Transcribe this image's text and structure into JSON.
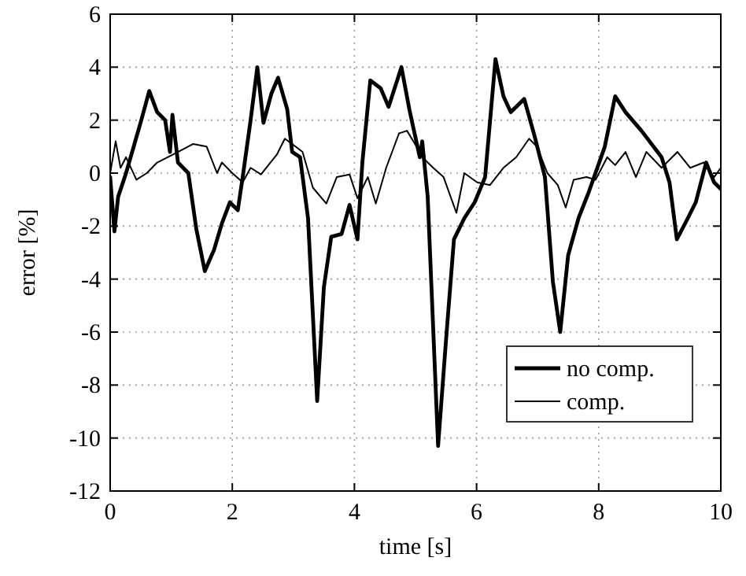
{
  "chart_data": {
    "type": "line",
    "xlabel": "time [s]",
    "ylabel": "error [%]",
    "xlim": [
      0,
      10
    ],
    "ylim": [
      -12,
      6
    ],
    "xticks": [
      0,
      2,
      4,
      6,
      8,
      10
    ],
    "yticks": [
      -12,
      -10,
      -8,
      -6,
      -4,
      -2,
      0,
      2,
      4,
      6
    ],
    "grid": true,
    "legend": "bottom right",
    "line_style": "solid",
    "series": [
      {
        "name": "no comp.",
        "color": "#000000",
        "x": [
          0,
          0.07,
          0.13,
          0.26,
          0.51,
          0.64,
          0.77,
          0.9,
          0.98,
          1.02,
          1.11,
          1.28,
          1.41,
          1.55,
          1.7,
          1.83,
          1.96,
          2.09,
          2.17,
          2.3,
          2.41,
          2.51,
          2.64,
          2.75,
          2.9,
          2.98,
          3.11,
          3.24,
          3.39,
          3.5,
          3.62,
          3.79,
          3.92,
          4.05,
          4.13,
          4.26,
          4.43,
          4.56,
          4.77,
          4.9,
          5.07,
          5.11,
          5.2,
          5.37,
          5.5,
          5.63,
          5.8,
          5.97,
          6.14,
          6.31,
          6.44,
          6.56,
          6.78,
          6.95,
          7.12,
          7.25,
          7.37,
          7.5,
          7.67,
          7.84,
          8.1,
          8.27,
          8.44,
          8.7,
          9.03,
          9.16,
          9.28,
          9.46,
          9.59,
          9.76,
          9.89,
          10
        ],
        "values": [
          -0.15,
          -2.2,
          -0.9,
          0,
          2.0,
          3.1,
          2.3,
          2.0,
          0.8,
          2.2,
          0.4,
          0,
          -2.1,
          -3.7,
          -2.9,
          -1.9,
          -1.1,
          -1.4,
          -0.15,
          2.0,
          4.0,
          1.9,
          3.0,
          3.6,
          2.4,
          0.8,
          0.6,
          -1.7,
          -8.6,
          -4.3,
          -2.4,
          -2.3,
          -1.2,
          -2.5,
          0.4,
          3.5,
          3.2,
          2.5,
          4.0,
          2.4,
          0.6,
          1.2,
          -0.9,
          -10.3,
          -6.3,
          -2.5,
          -1.7,
          -1.1,
          -0.15,
          4.3,
          2.9,
          2.3,
          2.8,
          1.4,
          -0.15,
          -4.1,
          -6.0,
          -3.1,
          -1.7,
          -0.7,
          1.0,
          2.9,
          2.3,
          1.6,
          0.6,
          -0.35,
          -2.5,
          -1.7,
          -1.1,
          0.4,
          -0.35,
          -0.6
        ]
      },
      {
        "name": "comp.",
        "color": "#000000",
        "x": [
          0,
          0.09,
          0.17,
          0.26,
          0.43,
          0.6,
          0.77,
          0.94,
          1.11,
          1.36,
          1.58,
          1.75,
          1.83,
          2.0,
          2.17,
          2.3,
          2.47,
          2.73,
          2.86,
          2.98,
          3.15,
          3.32,
          3.54,
          3.71,
          3.92,
          4.05,
          4.22,
          4.35,
          4.52,
          4.73,
          4.86,
          5.07,
          5.11,
          5.29,
          5.46,
          5.67,
          5.8,
          6.01,
          6.22,
          6.44,
          6.65,
          6.86,
          6.99,
          7.16,
          7.33,
          7.46,
          7.59,
          7.8,
          7.95,
          8.14,
          8.27,
          8.44,
          8.61,
          8.78,
          9.03,
          9.29,
          9.5,
          9.72,
          9.89,
          10
        ],
        "values": [
          0,
          1.2,
          0.2,
          0.6,
          -0.25,
          0,
          0.4,
          0.6,
          0.8,
          1.1,
          1.0,
          0,
          0.4,
          0,
          -0.35,
          0.2,
          -0.05,
          0.7,
          1.3,
          1.1,
          0.8,
          -0.55,
          -1.15,
          -0.15,
          -0.05,
          -0.95,
          -0.15,
          -1.15,
          0.2,
          1.5,
          1.6,
          0.8,
          0.6,
          0.2,
          -0.15,
          -1.5,
          0,
          -0.35,
          -0.45,
          0.2,
          0.6,
          1.3,
          1.0,
          0,
          -0.45,
          -1.3,
          -0.25,
          -0.15,
          -0.25,
          0.6,
          0.3,
          0.8,
          -0.15,
          0.8,
          0.2,
          0.8,
          0.2,
          0.4,
          -0.15,
          0.2
        ]
      }
    ]
  }
}
